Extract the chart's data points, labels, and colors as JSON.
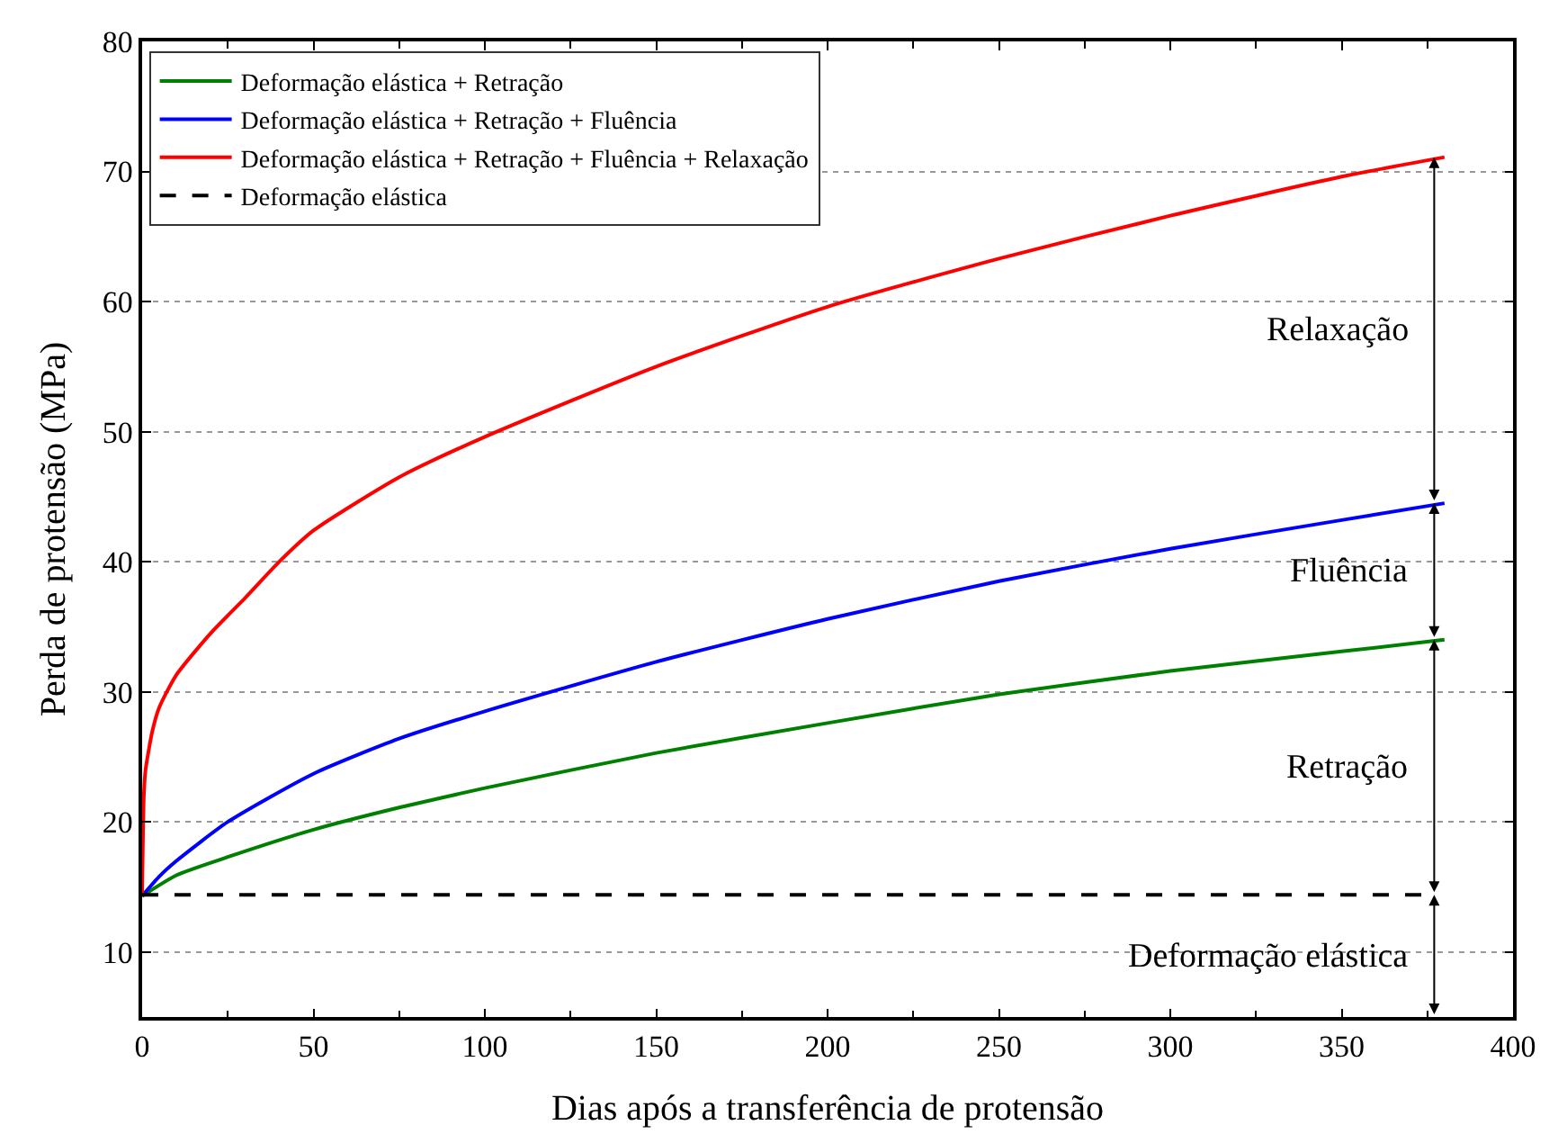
{
  "chart_data": {
    "type": "line",
    "xlabel": "Dias após a transferência de protensão",
    "ylabel": "Perda de protensão (MPa)",
    "xlim": [
      0,
      400
    ],
    "xticks": [
      0,
      50,
      100,
      150,
      200,
      250,
      300,
      350,
      400
    ],
    "ylim": [
      5,
      80
    ],
    "yticks": [
      10,
      20,
      30,
      40,
      50,
      60,
      70,
      80
    ],
    "grid": "y",
    "legend": "top left",
    "marker": "none",
    "series": [
      {
        "name": "Deformação elástica + Retração",
        "color": "#008000",
        "line_style": "solid",
        "x": [
          0,
          10,
          25,
          50,
          75,
          100,
          150,
          200,
          250,
          300,
          350,
          380
        ],
        "values": [
          14.3,
          15.9,
          17.3,
          19.4,
          21.1,
          22.6,
          25.3,
          27.6,
          29.8,
          31.6,
          33.1,
          34.0
        ]
      },
      {
        "name": "Deformação elástica + Retração + Fluência",
        "color": "#0000ff",
        "line_style": "solid",
        "x": [
          0,
          5,
          10,
          25,
          50,
          75,
          100,
          150,
          200,
          250,
          300,
          350,
          380
        ],
        "values": [
          14.3,
          15.8,
          17.0,
          20.0,
          23.7,
          26.4,
          28.5,
          32.3,
          35.6,
          38.5,
          41.0,
          43.2,
          44.5
        ]
      },
      {
        "name": "Deformação elástica + Retração + Fluência + Relaxação",
        "color": "#ff0000",
        "line_style": "solid",
        "x": [
          0,
          0.5,
          1,
          3,
          5,
          10,
          20,
          30,
          40,
          50,
          75,
          100,
          150,
          200,
          250,
          300,
          350,
          380
        ],
        "values": [
          14.3,
          22,
          24,
          27,
          28.8,
          31.3,
          34.5,
          37.2,
          40,
          42.4,
          46.5,
          49.6,
          55,
          59.6,
          63.3,
          66.6,
          69.6,
          71.1
        ]
      },
      {
        "name": "Deformação elástica",
        "color": "#000000",
        "line_style": "dashed",
        "x": [
          0,
          377
        ],
        "values": [
          14.4,
          14.4
        ]
      }
    ],
    "annotations": [
      "Relaxação",
      "Fluência",
      "Retração",
      "Deformação elástica"
    ]
  }
}
